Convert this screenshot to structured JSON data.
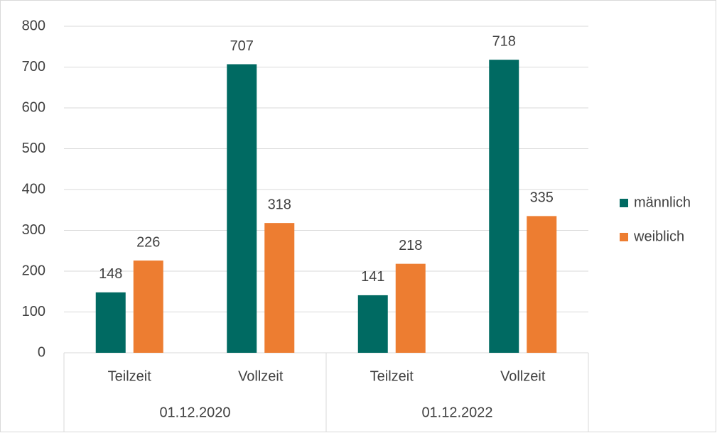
{
  "chart_data": {
    "type": "bar",
    "categories": [
      "Teilzeit",
      "Vollzeit",
      "Teilzeit",
      "Vollzeit"
    ],
    "groups": [
      "01.12.2020",
      "01.12.2022"
    ],
    "series": [
      {
        "name": "männlich",
        "color": "#006a62",
        "values": [
          148,
          707,
          141,
          718
        ]
      },
      {
        "name": "weiblich",
        "color": "#ed7d31",
        "values": [
          226,
          318,
          218,
          335
        ]
      }
    ],
    "ylim": [
      0,
      800
    ],
    "yticks": [
      0,
      100,
      200,
      300,
      400,
      500,
      600,
      700,
      800
    ],
    "grid": true,
    "legend": "right"
  }
}
